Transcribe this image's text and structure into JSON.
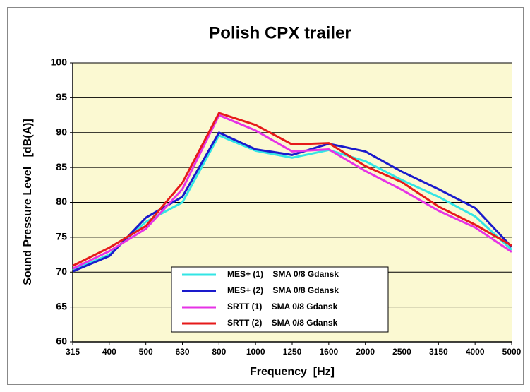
{
  "chart_data": {
    "type": "line",
    "title": "Polish CPX trailer",
    "x_label": "Frequency  [Hz]",
    "y_label": "Sound Pressure Level   [dB(A)]",
    "categories": [
      "315",
      "400",
      "500",
      "630",
      "800",
      "1000",
      "1250",
      "1600",
      "2000",
      "2500",
      "3150",
      "4000",
      "5000"
    ],
    "series": [
      {
        "name": "MES+ (1)    SMA 0/8 Gdansk",
        "color": "#33e5e5",
        "values": [
          70.3,
          72.5,
          77.2,
          80.0,
          89.6,
          87.4,
          86.4,
          87.5,
          85.9,
          83.2,
          80.8,
          78.0,
          73.2
        ]
      },
      {
        "name": "MES+ (2)    SMA 0/8 Gdansk",
        "color": "#1a1acc",
        "values": [
          70.1,
          72.3,
          77.8,
          80.8,
          90.0,
          87.6,
          86.8,
          88.4,
          87.3,
          84.4,
          81.9,
          79.2,
          73.6
        ]
      },
      {
        "name": "SRTT (1)    SMA 0/8 Gdansk",
        "color": "#e633e6",
        "values": [
          70.5,
          73.0,
          76.2,
          81.9,
          92.5,
          90.3,
          87.3,
          87.6,
          84.5,
          81.8,
          78.8,
          76.4,
          72.9
        ]
      },
      {
        "name": "SRTT (2)    SMA 0/8 Gdansk",
        "color": "#e61a1a",
        "values": [
          70.9,
          73.5,
          76.6,
          82.8,
          92.8,
          91.1,
          88.3,
          88.5,
          85.2,
          82.9,
          79.4,
          76.8,
          73.8
        ]
      }
    ],
    "ylim": [
      60,
      100
    ],
    "yticks": [
      60,
      65,
      70,
      75,
      80,
      85,
      90,
      95,
      100
    ],
    "grid": true
  }
}
